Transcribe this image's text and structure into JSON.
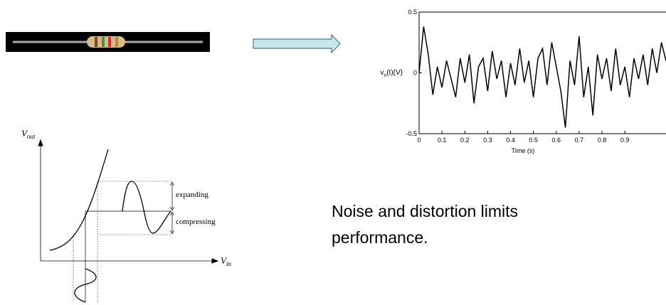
{
  "noise_plot": {
    "type": "line",
    "y_label": {
      "symbol": "v",
      "subscript": "n",
      "rest": "(t)(V)"
    },
    "x_label": "Time (s)",
    "xlim": [
      0,
      1.08
    ],
    "ylim": [
      -0.5,
      0.5
    ],
    "xticks": [
      0,
      0.1,
      0.2,
      0.3,
      0.4,
      0.5,
      0.6,
      0.7,
      0.8,
      0.9
    ],
    "yticks": [
      -0.5,
      0,
      0.5
    ],
    "color": "#000000",
    "x": [
      0,
      0.02,
      0.04,
      0.06,
      0.08,
      0.1,
      0.12,
      0.14,
      0.16,
      0.18,
      0.2,
      0.22,
      0.24,
      0.26,
      0.28,
      0.3,
      0.32,
      0.34,
      0.36,
      0.38,
      0.4,
      0.42,
      0.44,
      0.46,
      0.48,
      0.5,
      0.52,
      0.54,
      0.56,
      0.58,
      0.6,
      0.62,
      0.64,
      0.66,
      0.68,
      0.7,
      0.72,
      0.74,
      0.76,
      0.78,
      0.8,
      0.82,
      0.84,
      0.86,
      0.88,
      0.9,
      0.92,
      0.94,
      0.96,
      0.98,
      1.0,
      1.02,
      1.04,
      1.06,
      1.08
    ],
    "values": [
      0,
      0.38,
      0.15,
      -0.18,
      0.05,
      -0.12,
      0.1,
      -0.05,
      -0.2,
      0.12,
      -0.08,
      0.15,
      -0.25,
      0.05,
      0.12,
      -0.15,
      0.18,
      -0.05,
      0.1,
      -0.2,
      0.08,
      -0.1,
      0.2,
      -0.08,
      0.1,
      -0.2,
      0.12,
      0.2,
      -0.1,
      0.25,
      0.05,
      -0.15,
      -0.45,
      0.1,
      -0.1,
      0.3,
      -0.2,
      0.05,
      -0.35,
      0.15,
      -0.05,
      0.12,
      -0.15,
      0.2,
      -0.1,
      0.05,
      -0.2,
      0.12,
      -0.05,
      0.15,
      -0.1,
      0.2,
      0,
      0.25,
      0.1
    ]
  },
  "distortion_diagram": {
    "y_axis": {
      "symbol": "V",
      "subscript": "out"
    },
    "x_axis": {
      "symbol": "V",
      "subscript": "in"
    },
    "expanding": "expanding",
    "compressing": "compressing"
  },
  "caption": [
    "Noise and distortion limits",
    "performance."
  ]
}
